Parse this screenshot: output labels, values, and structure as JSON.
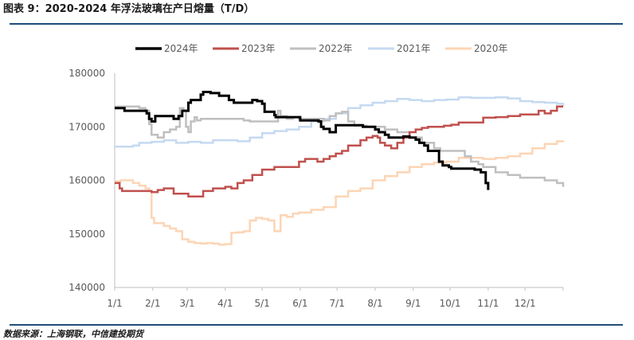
{
  "header": {
    "title": "图表 9：2020-2024 年浮法玻璃在产日熔量（T/D）"
  },
  "footer": {
    "source": "数据来源：上海钢联，中信建投期货"
  },
  "chart_data": {
    "type": "line",
    "title": "图表 9：2020-2024 年浮法玻璃在产日熔量（T/D）",
    "xlabel": "",
    "ylabel": "",
    "ylim": [
      140000,
      180000
    ],
    "yticks": [
      140000,
      150000,
      160000,
      170000,
      180000
    ],
    "xlim": [
      0,
      365
    ],
    "x_tick_labels": [
      "1/1",
      "2/1",
      "3/1",
      "4/1",
      "5/1",
      "6/1",
      "7/1",
      "8/1",
      "9/1",
      "10/1",
      "11/1",
      "12/1"
    ],
    "x_tick_days": [
      0,
      31,
      59,
      90,
      120,
      151,
      181,
      212,
      243,
      273,
      304,
      334
    ],
    "x_unit": "day of year",
    "legend_position": "top",
    "grid": false,
    "series": [
      {
        "name": "2024年",
        "color": "#000000",
        "width": 3,
        "x": [
          0,
          7,
          8,
          25,
          26,
          28,
          30,
          33,
          46,
          48,
          52,
          55,
          60,
          62,
          70,
          72,
          78,
          85,
          93,
          97,
          109,
          112,
          116,
          120,
          122,
          130,
          131,
          150,
          151,
          166,
          168,
          170,
          175,
          180,
          201,
          202,
          212,
          215,
          220,
          223,
          235,
          240,
          245,
          248,
          252,
          255,
          264,
          267,
          272,
          274,
          280,
          286,
          293,
          298,
          302,
          304
        ],
        "y": [
          173500,
          173500,
          173000,
          173000,
          172500,
          171500,
          171000,
          172000,
          172000,
          171500,
          172000,
          173000,
          174500,
          175000,
          176000,
          176500,
          176300,
          175800,
          175000,
          174500,
          174500,
          175000,
          174800,
          174300,
          172800,
          172200,
          171800,
          171800,
          171200,
          171000,
          170000,
          169600,
          169000,
          170300,
          170300,
          170000,
          169500,
          169000,
          168500,
          168000,
          168200,
          168000,
          167600,
          167000,
          166500,
          165500,
          163500,
          162800,
          162500,
          162200,
          162200,
          162200,
          162000,
          161500,
          159500,
          158200
        ]
      },
      {
        "name": "2023年",
        "color": "#c0504d",
        "width": 2.5,
        "x": [
          0,
          4,
          6,
          15,
          25,
          30,
          35,
          40,
          48,
          55,
          60,
          72,
          80,
          90,
          95,
          100,
          105,
          112,
          120,
          125,
          130,
          150,
          155,
          165,
          170,
          175,
          180,
          185,
          190,
          200,
          205,
          210,
          214,
          216,
          220,
          225,
          230,
          235,
          240,
          245,
          250,
          255,
          260,
          268,
          274,
          280,
          300,
          310,
          320,
          330,
          345,
          350,
          355,
          360,
          365
        ],
        "y": [
          159500,
          158500,
          158000,
          158000,
          158000,
          157800,
          158200,
          158500,
          157500,
          157500,
          157000,
          158000,
          158500,
          158800,
          158500,
          159500,
          160000,
          161000,
          162000,
          162000,
          162500,
          163500,
          164000,
          163500,
          164000,
          164500,
          165000,
          165500,
          166500,
          167500,
          168000,
          168300,
          168000,
          167000,
          166500,
          166000,
          167000,
          168000,
          169000,
          169500,
          169800,
          170000,
          170000,
          170200,
          170400,
          170800,
          171700,
          171800,
          172000,
          172300,
          173000,
          172500,
          173000,
          173800,
          173800
        ]
      },
      {
        "name": "2022年",
        "color": "#bfbfbf",
        "width": 2.5,
        "x": [
          0,
          10,
          20,
          25,
          28,
          30,
          35,
          40,
          45,
          50,
          53,
          56,
          58,
          60,
          62,
          65,
          67,
          70,
          80,
          95,
          105,
          110,
          130,
          133,
          135,
          140,
          145,
          150,
          160,
          170,
          175,
          180,
          185,
          190,
          195,
          200,
          205,
          210,
          220,
          230,
          240,
          250,
          260,
          265,
          270,
          280,
          285,
          290,
          296,
          300,
          310,
          320,
          330,
          340,
          350,
          360,
          365
        ],
        "y": [
          173800,
          173800,
          173500,
          173000,
          170500,
          168500,
          168000,
          169000,
          169500,
          170000,
          173500,
          173000,
          170000,
          169000,
          171000,
          171800,
          171200,
          171500,
          171500,
          171500,
          171200,
          171000,
          171000,
          173000,
          172000,
          171500,
          171800,
          171500,
          171500,
          171200,
          172000,
          172500,
          172800,
          171000,
          170200,
          170200,
          170000,
          170000,
          169500,
          169000,
          168000,
          167000,
          166000,
          165500,
          165500,
          165500,
          164500,
          163500,
          163000,
          162500,
          161500,
          161000,
          160500,
          160500,
          160000,
          159500,
          158800
        ]
      },
      {
        "name": "2021年",
        "color": "#c5d9f1",
        "width": 2.5,
        "x": [
          0,
          10,
          15,
          20,
          25,
          30,
          40,
          50,
          60,
          70,
          80,
          90,
          100,
          110,
          120,
          130,
          140,
          150,
          160,
          170,
          180,
          190,
          200,
          210,
          220,
          230,
          240,
          250,
          260,
          270,
          280,
          290,
          300,
          310,
          320,
          330,
          340,
          350,
          360,
          365
        ],
        "y": [
          166300,
          166300,
          166500,
          167000,
          167000,
          167200,
          167500,
          167000,
          167200,
          167000,
          167500,
          167500,
          167300,
          168000,
          168800,
          169200,
          169500,
          170000,
          171000,
          171500,
          172500,
          173500,
          174000,
          174500,
          174800,
          175200,
          175000,
          174800,
          175000,
          175100,
          175500,
          175400,
          175400,
          175500,
          175300,
          174800,
          174600,
          174500,
          174300,
          173800
        ]
      },
      {
        "name": "2020年",
        "color": "#fcd5b5",
        "width": 2.5,
        "x": [
          0,
          5,
          10,
          15,
          20,
          25,
          28,
          30,
          32,
          35,
          40,
          45,
          50,
          55,
          60,
          65,
          70,
          75,
          80,
          85,
          90,
          95,
          100,
          105,
          110,
          115,
          120,
          125,
          130,
          135,
          140,
          145,
          150,
          160,
          170,
          180,
          190,
          200,
          210,
          220,
          230,
          240,
          250,
          260,
          270,
          280,
          290,
          300,
          310,
          320,
          330,
          340,
          350,
          360,
          365
        ],
        "y": [
          159800,
          160000,
          160000,
          159500,
          159000,
          158500,
          158000,
          153000,
          152000,
          152000,
          151500,
          151000,
          150500,
          149000,
          148500,
          148300,
          148200,
          148300,
          148200,
          148000,
          148100,
          150200,
          150300,
          150500,
          152500,
          153000,
          152800,
          152500,
          150500,
          153500,
          153200,
          153800,
          154000,
          154500,
          155000,
          157000,
          158000,
          158500,
          160000,
          160800,
          161500,
          162500,
          163000,
          163300,
          163500,
          164200,
          164200,
          164000,
          164200,
          164500,
          165000,
          166000,
          166800,
          167300,
          167400
        ]
      }
    ]
  }
}
